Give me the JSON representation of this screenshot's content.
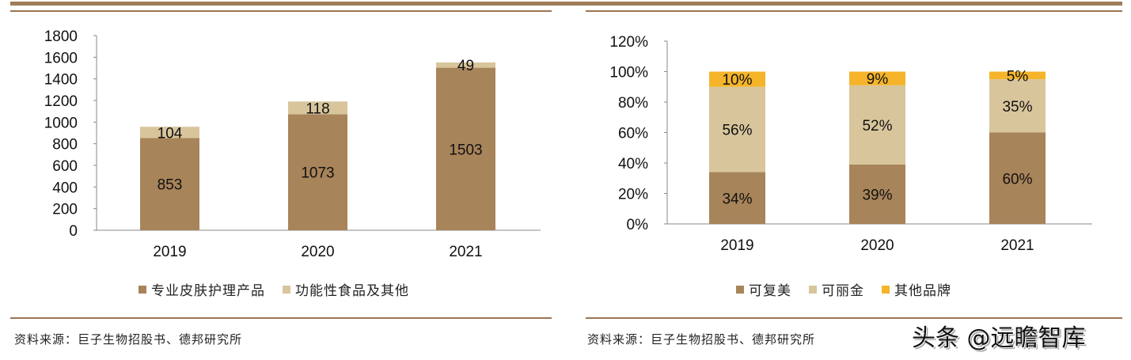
{
  "colors": {
    "brown": "#a8845a",
    "tan": "#d8c59c",
    "yellow": "#f5b42a",
    "rule": "#9a7452"
  },
  "chart_data": [
    {
      "type": "bar",
      "stacked": true,
      "categories": [
        "2019",
        "2020",
        "2021"
      ],
      "series": [
        {
          "name": "专业皮肤护理产品",
          "values": [
            853,
            1073,
            1503
          ]
        },
        {
          "name": "功能性食品及其他",
          "values": [
            104,
            118,
            49
          ]
        }
      ],
      "ylim": [
        0,
        1800
      ],
      "yticks": [
        "0",
        "200",
        "400",
        "600",
        "800",
        "1000",
        "1200",
        "1400",
        "1600",
        "1800"
      ],
      "grid": false,
      "legend": "bottom"
    },
    {
      "type": "bar",
      "stacked": true,
      "categories": [
        "2019",
        "2020",
        "2021"
      ],
      "series": [
        {
          "name": "可复美",
          "values": [
            34,
            39,
            60
          ],
          "labels": [
            "34%",
            "39%",
            "60%"
          ]
        },
        {
          "name": "可丽金",
          "values": [
            56,
            52,
            35
          ],
          "labels": [
            "56%",
            "52%",
            "35%"
          ]
        },
        {
          "name": "其他品牌",
          "values": [
            10,
            9,
            5
          ],
          "labels": [
            "10%",
            "9%",
            "5%"
          ]
        }
      ],
      "ylim": [
        0,
        120
      ],
      "yticks": [
        "0%",
        "20%",
        "40%",
        "60%",
        "80%",
        "100%",
        "120%"
      ],
      "grid": false,
      "legend": "bottom"
    }
  ],
  "sources": [
    "资料来源：巨子生物招股书、德邦研究所",
    "资料来源：巨子生物招股书、德邦研究所"
  ],
  "watermark": "头条 @远瞻智库"
}
